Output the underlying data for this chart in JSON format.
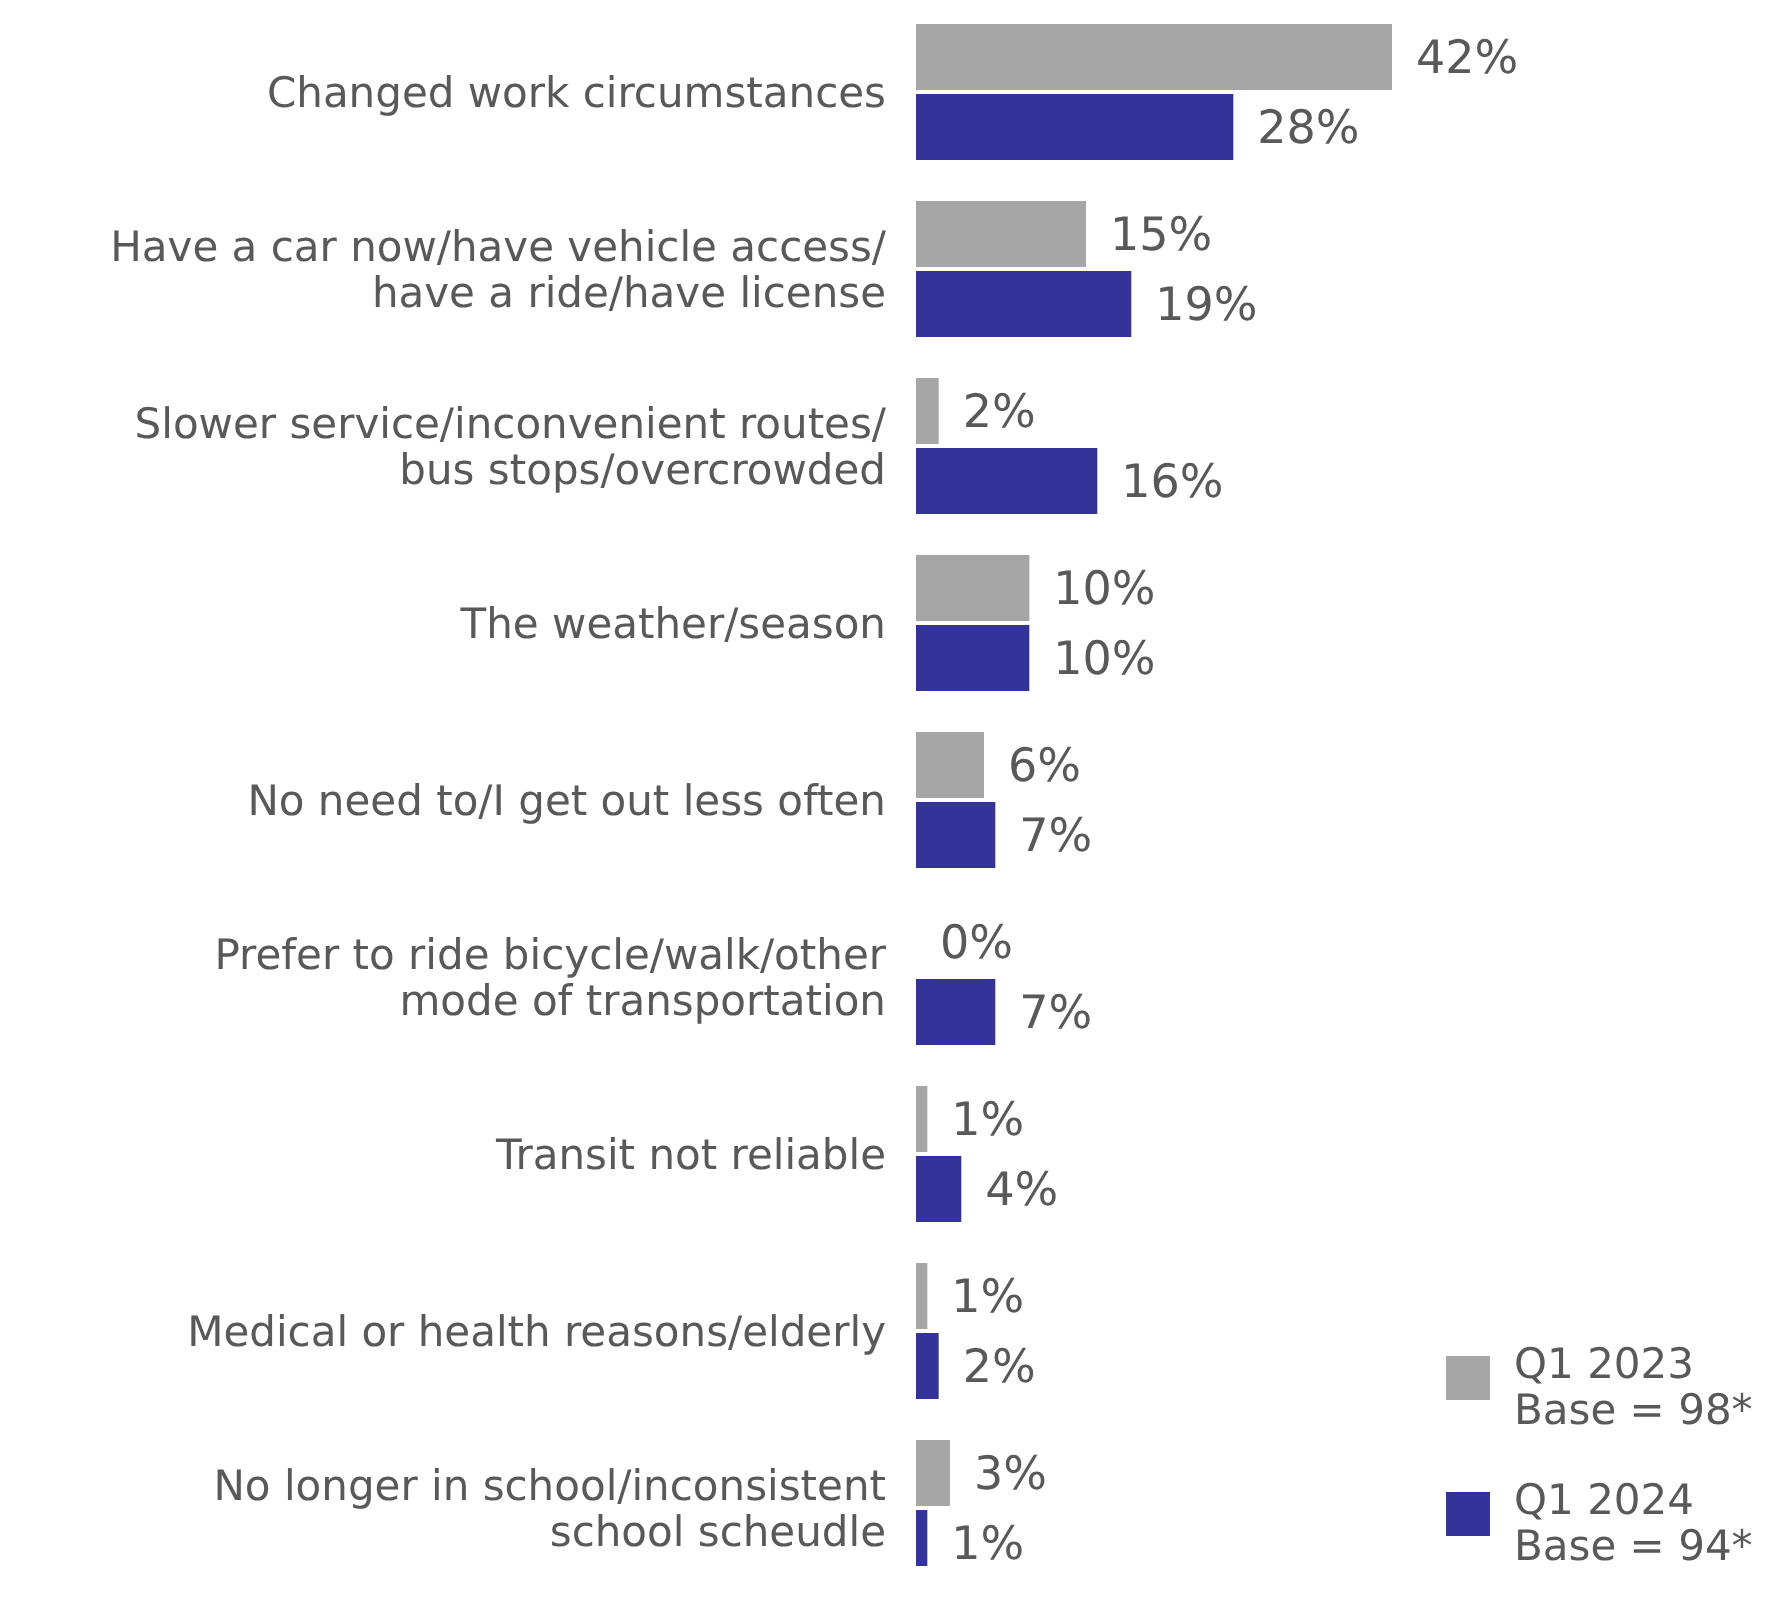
{
  "chart_data": {
    "type": "bar",
    "orientation": "horizontal",
    "categories": [
      "Changed work circumstances",
      "Have a car now/have vehicle access/have a ride/have license",
      "Slower service/inconvenient routes/bus stops/overcrowded",
      "The weather/season",
      "No need to/I get out less often",
      "Prefer to ride bicycle/walk/other mode of transportation",
      "Transit not reliable",
      "Medical or health reasons/elderly",
      "No longer in school/inconsistent school scheudle"
    ],
    "series": [
      {
        "name": "Q1 2023\nBase = 98*",
        "color": "#a6a6a6",
        "values": [
          42,
          15,
          2,
          10,
          6,
          0,
          1,
          1,
          3
        ],
        "value_labels": [
          "42%",
          "15%",
          "2%",
          "10%",
          "6%",
          "0%",
          "1%",
          "1%",
          "3%"
        ]
      },
      {
        "name": "Q1 2024\nBase = 94*",
        "color": "#333399",
        "values": [
          28,
          19,
          16,
          10,
          7,
          7,
          4,
          2,
          1
        ],
        "value_labels": [
          "28%",
          "19%",
          "16%",
          "10%",
          "7%",
          "7%",
          "4%",
          "2%",
          "1%"
        ]
      }
    ],
    "xlim": [
      0,
      42
    ],
    "legend": "bottom right"
  }
}
